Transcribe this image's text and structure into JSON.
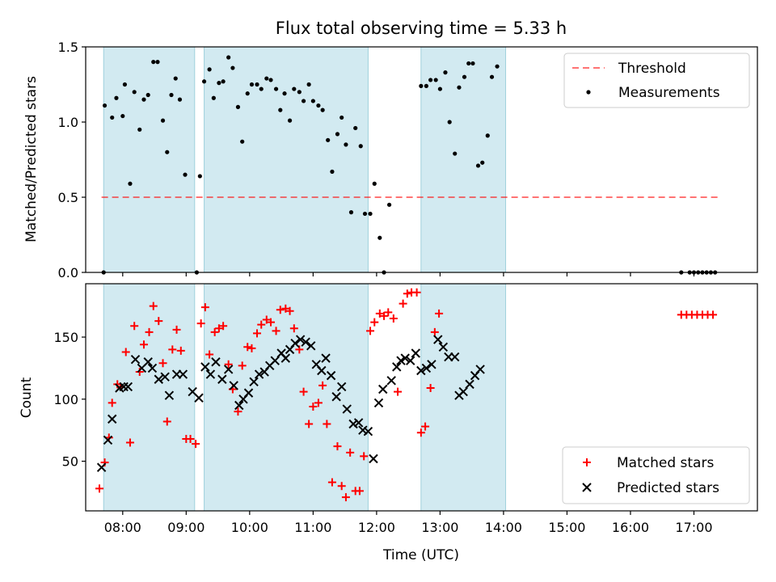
{
  "title": "Flux total observing time = 5.33 h",
  "colors": {
    "shade": "#add8e6",
    "threshold": "#ff0000",
    "measurement": "#000000",
    "matched": "#ff0000",
    "predicted": "#000000"
  },
  "chart_data": [
    {
      "type": "scatter",
      "panel": "top",
      "ylabel": "Matched/Predicted stars",
      "ylim": [
        0,
        1.5
      ],
      "yticks": [
        "0.0",
        "0.5",
        "1.0",
        "1.5"
      ],
      "xlim": [
        "07:25",
        "18:00"
      ],
      "legend_position": "top-right",
      "legend": [
        "Threshold",
        "Measurements"
      ],
      "threshold": {
        "name": "Threshold",
        "value": 0.5,
        "x": [
          "07:40",
          "17:25"
        ]
      },
      "observing_windows": [
        [
          "07:42",
          "09:08"
        ],
        [
          "09:17",
          "11:52"
        ],
        [
          "12:42",
          "14:02"
        ]
      ],
      "series": [
        {
          "name": "Measurements",
          "points": [
            [
              "07:42",
              0.0
            ],
            [
              "07:43",
              1.11
            ],
            [
              "07:50",
              1.03
            ],
            [
              "07:54",
              1.16
            ],
            [
              "08:00",
              1.04
            ],
            [
              "08:02",
              1.25
            ],
            [
              "08:07",
              0.59
            ],
            [
              "08:11",
              1.2
            ],
            [
              "08:16",
              0.95
            ],
            [
              "08:20",
              1.15
            ],
            [
              "08:24",
              1.18
            ],
            [
              "08:29",
              1.4
            ],
            [
              "08:33",
              1.4
            ],
            [
              "08:38",
              1.01
            ],
            [
              "08:42",
              0.8
            ],
            [
              "08:46",
              1.18
            ],
            [
              "08:50",
              1.29
            ],
            [
              "08:54",
              1.15
            ],
            [
              "08:59",
              0.65
            ],
            [
              "09:10",
              0.0
            ],
            [
              "09:13",
              0.64
            ],
            [
              "09:17",
              1.27
            ],
            [
              "09:22",
              1.35
            ],
            [
              "09:26",
              1.16
            ],
            [
              "09:31",
              1.26
            ],
            [
              "09:35",
              1.27
            ],
            [
              "09:40",
              1.43
            ],
            [
              "09:44",
              1.36
            ],
            [
              "09:49",
              1.1
            ],
            [
              "09:53",
              0.87
            ],
            [
              "09:58",
              1.19
            ],
            [
              "10:02",
              1.25
            ],
            [
              "10:07",
              1.25
            ],
            [
              "10:11",
              1.22
            ],
            [
              "10:16",
              1.29
            ],
            [
              "10:20",
              1.28
            ],
            [
              "10:25",
              1.22
            ],
            [
              "10:29",
              1.08
            ],
            [
              "10:33",
              1.19
            ],
            [
              "10:38",
              1.01
            ],
            [
              "10:42",
              1.22
            ],
            [
              "10:47",
              1.2
            ],
            [
              "10:51",
              1.14
            ],
            [
              "10:56",
              1.25
            ],
            [
              "11:00",
              1.14
            ],
            [
              "11:05",
              1.11
            ],
            [
              "11:09",
              1.08
            ],
            [
              "11:14",
              0.88
            ],
            [
              "11:18",
              0.67
            ],
            [
              "11:23",
              0.92
            ],
            [
              "11:27",
              1.03
            ],
            [
              "11:31",
              0.85
            ],
            [
              "11:36",
              0.4
            ],
            [
              "11:40",
              0.96
            ],
            [
              "11:45",
              0.84
            ],
            [
              "11:49",
              0.39
            ],
            [
              "11:54",
              0.39
            ],
            [
              "11:58",
              0.59
            ],
            [
              "12:03",
              0.23
            ],
            [
              "12:07",
              0.0
            ],
            [
              "12:12",
              0.45
            ],
            [
              "12:42",
              1.24
            ],
            [
              "12:47",
              1.24
            ],
            [
              "12:51",
              1.28
            ],
            [
              "12:56",
              1.28
            ],
            [
              "13:00",
              1.22
            ],
            [
              "13:05",
              1.33
            ],
            [
              "13:09",
              1.0
            ],
            [
              "13:14",
              0.79
            ],
            [
              "13:18",
              1.23
            ],
            [
              "13:23",
              1.3
            ],
            [
              "13:27",
              1.39
            ],
            [
              "13:31",
              1.39
            ],
            [
              "13:36",
              0.71
            ],
            [
              "13:40",
              0.73
            ],
            [
              "13:45",
              0.91
            ],
            [
              "13:49",
              1.3
            ],
            [
              "13:54",
              1.37
            ],
            [
              "16:48",
              0.0
            ],
            [
              "16:56",
              0.0
            ],
            [
              "17:00",
              0.0
            ],
            [
              "17:04",
              0.0
            ],
            [
              "17:08",
              0.0
            ],
            [
              "17:12",
              0.0
            ],
            [
              "17:16",
              0.0
            ],
            [
              "17:20",
              0.0
            ]
          ]
        }
      ]
    },
    {
      "type": "scatter",
      "panel": "bottom",
      "ylabel": "Count",
      "xlabel": "Time (UTC)",
      "ylim": [
        10,
        193
      ],
      "yticks": [
        "50",
        "100",
        "150"
      ],
      "xticks": [
        "08:00",
        "09:00",
        "10:00",
        "11:00",
        "12:00",
        "13:00",
        "14:00",
        "15:00",
        "16:00",
        "17:00"
      ],
      "xlim": [
        "07:25",
        "18:00"
      ],
      "legend_position": "bottom-right",
      "legend": [
        "Matched stars",
        "Predicted stars"
      ],
      "observing_windows": [
        [
          "07:42",
          "09:08"
        ],
        [
          "09:17",
          "11:52"
        ],
        [
          "12:42",
          "14:02"
        ]
      ],
      "series": [
        {
          "name": "Matched stars",
          "points": [
            [
              "07:38",
              28
            ],
            [
              "07:43",
              49
            ],
            [
              "07:47",
              69
            ],
            [
              "07:50",
              97
            ],
            [
              "07:55",
              112
            ],
            [
              "07:58",
              110
            ],
            [
              "08:03",
              138
            ],
            [
              "08:07",
              65
            ],
            [
              "08:11",
              159
            ],
            [
              "08:16",
              122
            ],
            [
              "08:20",
              144
            ],
            [
              "08:25",
              154
            ],
            [
              "08:29",
              175
            ],
            [
              "08:34",
              163
            ],
            [
              "08:38",
              129
            ],
            [
              "08:42",
              82
            ],
            [
              "08:47",
              140
            ],
            [
              "08:51",
              156
            ],
            [
              "08:55",
              139
            ],
            [
              "09:00",
              68
            ],
            [
              "09:04",
              68
            ],
            [
              "09:09",
              64
            ],
            [
              "09:14",
              161
            ],
            [
              "09:18",
              174
            ],
            [
              "09:22",
              136
            ],
            [
              "09:27",
              154
            ],
            [
              "09:31",
              157
            ],
            [
              "09:35",
              159
            ],
            [
              "09:40",
              128
            ],
            [
              "09:44",
              108
            ],
            [
              "09:49",
              90
            ],
            [
              "09:53",
              127
            ],
            [
              "09:58",
              142
            ],
            [
              "10:02",
              141
            ],
            [
              "10:07",
              153
            ],
            [
              "10:11",
              160
            ],
            [
              "10:16",
              164
            ],
            [
              "10:20",
              162
            ],
            [
              "10:25",
              155
            ],
            [
              "10:29",
              172
            ],
            [
              "10:34",
              173
            ],
            [
              "10:38",
              171
            ],
            [
              "10:42",
              157
            ],
            [
              "10:47",
              140
            ],
            [
              "10:51",
              106
            ],
            [
              "10:56",
              80
            ],
            [
              "11:00",
              94
            ],
            [
              "11:05",
              97
            ],
            [
              "11:09",
              111
            ],
            [
              "11:13",
              80
            ],
            [
              "11:18",
              33
            ],
            [
              "11:23",
              62
            ],
            [
              "11:27",
              30
            ],
            [
              "11:31",
              21
            ],
            [
              "11:35",
              57
            ],
            [
              "11:40",
              26
            ],
            [
              "11:44",
              26
            ],
            [
              "11:48",
              54
            ],
            [
              "11:54",
              155
            ],
            [
              "11:58",
              162
            ],
            [
              "12:03",
              169
            ],
            [
              "12:07",
              167
            ],
            [
              "12:11",
              170
            ],
            [
              "12:16",
              165
            ],
            [
              "12:20",
              106
            ],
            [
              "12:25",
              177
            ],
            [
              "12:29",
              185
            ],
            [
              "12:33",
              186
            ],
            [
              "12:38",
              186
            ],
            [
              "12:42",
              73
            ],
            [
              "12:46",
              78
            ],
            [
              "12:51",
              109
            ],
            [
              "12:55",
              154
            ],
            [
              "12:59",
              169
            ],
            [
              "16:48",
              168
            ],
            [
              "16:53",
              168
            ],
            [
              "16:58",
              168
            ],
            [
              "17:03",
              168
            ],
            [
              "17:08",
              168
            ],
            [
              "17:13",
              168
            ],
            [
              "17:18",
              168
            ]
          ]
        },
        {
          "name": "Predicted stars",
          "points": [
            [
              "07:40",
              45
            ],
            [
              "07:46",
              67
            ],
            [
              "07:50",
              84
            ],
            [
              "07:57",
              109
            ],
            [
              "08:01",
              110
            ],
            [
              "08:05",
              110
            ],
            [
              "08:12",
              132
            ],
            [
              "08:18",
              125
            ],
            [
              "08:24",
              130
            ],
            [
              "08:28",
              125
            ],
            [
              "08:34",
              116
            ],
            [
              "08:40",
              118
            ],
            [
              "08:44",
              103
            ],
            [
              "08:51",
              120
            ],
            [
              "08:57",
              120
            ],
            [
              "09:06",
              106
            ],
            [
              "09:12",
              101
            ],
            [
              "09:18",
              126
            ],
            [
              "09:23",
              120
            ],
            [
              "09:28",
              130
            ],
            [
              "09:34",
              116
            ],
            [
              "09:40",
              124
            ],
            [
              "09:45",
              111
            ],
            [
              "09:50",
              95
            ],
            [
              "09:54",
              100
            ],
            [
              "09:59",
              105
            ],
            [
              "10:04",
              114
            ],
            [
              "10:09",
              120
            ],
            [
              "10:14",
              122
            ],
            [
              "10:19",
              127
            ],
            [
              "10:24",
              131
            ],
            [
              "10:30",
              137
            ],
            [
              "10:34",
              133
            ],
            [
              "10:38",
              140
            ],
            [
              "10:43",
              145
            ],
            [
              "10:48",
              148
            ],
            [
              "10:53",
              146
            ],
            [
              "10:58",
              143
            ],
            [
              "11:03",
              128
            ],
            [
              "11:08",
              123
            ],
            [
              "11:12",
              133
            ],
            [
              "11:17",
              119
            ],
            [
              "11:22",
              102
            ],
            [
              "11:27",
              110
            ],
            [
              "11:32",
              92
            ],
            [
              "11:38",
              80
            ],
            [
              "11:43",
              81
            ],
            [
              "11:47",
              75
            ],
            [
              "11:52",
              74
            ],
            [
              "11:57",
              52
            ],
            [
              "12:02",
              97
            ],
            [
              "12:06",
              108
            ],
            [
              "12:14",
              115
            ],
            [
              "12:19",
              126
            ],
            [
              "12:23",
              131
            ],
            [
              "12:27",
              133
            ],
            [
              "12:32",
              131
            ],
            [
              "12:37",
              137
            ],
            [
              "12:42",
              123
            ],
            [
              "12:47",
              125
            ],
            [
              "12:52",
              128
            ],
            [
              "12:58",
              148
            ],
            [
              "13:03",
              142
            ],
            [
              "13:08",
              134
            ],
            [
              "13:14",
              134
            ],
            [
              "13:18",
              103
            ],
            [
              "13:22",
              106
            ],
            [
              "13:28",
              112
            ],
            [
              "13:33",
              119
            ],
            [
              "13:38",
              124
            ]
          ]
        }
      ]
    }
  ]
}
